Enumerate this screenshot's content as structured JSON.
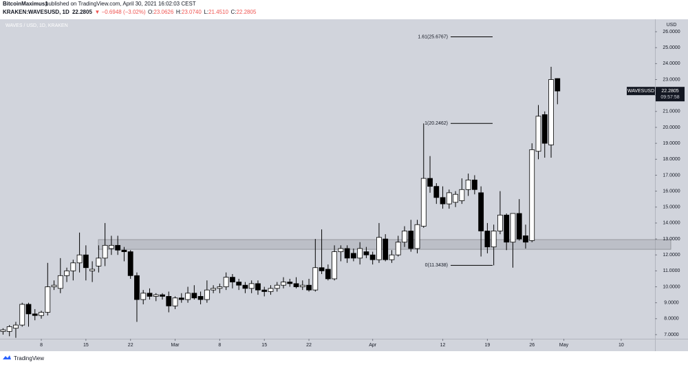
{
  "chart_data": {
    "type": "candlestick",
    "author": "BitcoinMaximus1",
    "published": "published on TradingView.com, April 30, 2021 16:02:03 CEST",
    "symbol": "KRAKEN:WAVESUSD, 1D",
    "header_price": "22.2805",
    "header_change": "▼ −0.6948 (−3.02%)",
    "header_ohlc": [
      "O:",
      "23.0626",
      "H:",
      "23.0740",
      "L:",
      "21.4510",
      "C:",
      "22.2805"
    ],
    "title": "WAVES / USD, 1D, KRAKEN",
    "axis_unit": "USD",
    "ticker": "WAVESUSD",
    "last_price": 22.2805,
    "countdown": "09:57:58",
    "brand": "TradingView",
    "grid": false,
    "up_color": "#ffffff",
    "down_color": "#000000",
    "x": [
      1,
      2,
      3,
      4,
      5,
      6,
      7,
      8,
      9,
      10,
      11,
      12,
      13,
      14,
      15,
      16,
      17,
      18,
      19,
      20,
      21,
      22,
      23,
      24,
      25,
      26,
      27,
      28,
      29,
      30,
      31,
      32,
      33,
      34,
      35,
      36,
      37,
      38,
      39,
      40,
      41,
      42,
      43,
      44,
      45,
      46,
      47,
      48,
      49,
      50,
      51,
      52,
      53,
      54,
      55,
      56,
      57,
      58,
      59,
      60,
      61,
      62,
      63,
      64,
      65,
      66,
      67,
      68,
      69,
      70,
      71,
      72,
      73,
      74,
      75,
      76,
      77,
      78,
      79,
      80,
      81,
      82,
      83,
      84,
      85,
      86,
      87,
      88
    ],
    "open": [
      7.2,
      7.2,
      7.4,
      7.6,
      8.9,
      8.3,
      8.2,
      8.4,
      10.0,
      9.9,
      10.7,
      11.0,
      11.5,
      12.0,
      11.0,
      11.3,
      11.8,
      12.4,
      12.6,
      12.3,
      12.2,
      10.7,
      9.2,
      9.6,
      9.4,
      9.5,
      9.4,
      8.8,
      9.3,
      9.2,
      9.6,
      9.4,
      9.2,
      9.8,
      9.9,
      10.0,
      10.6,
      10.3,
      10.1,
      9.9,
      10.2,
      9.8,
      9.7,
      9.9,
      10.1,
      10.3,
      10.2,
      10.0,
      10.1,
      9.8,
      11.2,
      11.1,
      10.5,
      12.2,
      12.4,
      12.1,
      11.8,
      12.2,
      12.0,
      11.7,
      13.0,
      11.7,
      12.0,
      12.8,
      13.5,
      12.4,
      13.8,
      16.8,
      16.3,
      15.6,
      15.2,
      15.3,
      15.4,
      16.1,
      16.7,
      15.9,
      13.5,
      12.5,
      13.5,
      14.5,
      12.8,
      14.6,
      13.2,
      12.9,
      18.5,
      20.8,
      18.9,
      23.0626
    ],
    "high": [
      7.4,
      7.6,
      7.8,
      9.0,
      9.0,
      8.6,
      8.5,
      11.5,
      10.4,
      11.8,
      11.2,
      11.7,
      13.4,
      12.6,
      11.6,
      12.6,
      14.0,
      13.2,
      13.2,
      12.5,
      12.3,
      10.9,
      9.8,
      9.9,
      9.6,
      9.6,
      9.7,
      9.4,
      9.6,
      10.0,
      10.1,
      9.7,
      10.4,
      10.1,
      10.2,
      10.9,
      10.8,
      10.5,
      10.3,
      10.4,
      10.4,
      10.0,
      10.1,
      10.3,
      10.6,
      10.5,
      10.6,
      10.4,
      10.5,
      13.0,
      13.6,
      11.4,
      12.6,
      12.6,
      12.6,
      12.4,
      12.8,
      12.5,
      12.2,
      14.0,
      13.3,
      12.3,
      13.2,
      13.8,
      14.2,
      14.2,
      20.2462,
      18.2,
      16.5,
      16.3,
      16.1,
      16.0,
      16.8,
      17.1,
      17.0,
      16.3,
      14.0,
      13.9,
      16.0,
      14.6,
      14.6,
      15.5,
      13.9,
      19.0,
      21.4,
      21.0,
      23.8,
      23.074
    ],
    "low": [
      7.0,
      6.9,
      6.8,
      7.5,
      7.5,
      7.9,
      8.0,
      8.2,
      9.8,
      9.6,
      10.3,
      10.4,
      10.9,
      10.4,
      10.3,
      10.9,
      11.3,
      12.0,
      12.0,
      11.6,
      10.5,
      7.8,
      8.9,
      9.2,
      9.1,
      9.2,
      8.4,
      8.6,
      9.0,
      9.0,
      9.2,
      8.9,
      9.0,
      9.6,
      9.6,
      9.8,
      9.9,
      9.8,
      9.6,
      9.6,
      9.5,
      9.4,
      9.5,
      9.7,
      9.9,
      10.0,
      9.9,
      9.8,
      9.7,
      9.7,
      10.8,
      10.4,
      10.4,
      11.6,
      11.5,
      11.6,
      11.4,
      11.8,
      11.4,
      11.5,
      11.6,
      11.5,
      11.9,
      12.5,
      12.2,
      12.1,
      13.7,
      15.9,
      15.2,
      14.9,
      14.9,
      15.0,
      15.2,
      15.7,
      15.8,
      11.9,
      12.1,
      11.3438,
      13.3,
      12.3,
      11.2,
      12.9,
      12.4,
      12.8,
      18.0,
      18.1,
      18.1,
      21.451
    ],
    "close": [
      7.3,
      7.5,
      7.6,
      8.9,
      8.3,
      8.2,
      8.4,
      10.0,
      10.1,
      10.7,
      11.0,
      11.5,
      12.0,
      11.2,
      11.1,
      11.8,
      12.6,
      12.6,
      12.3,
      12.2,
      10.7,
      9.2,
      9.6,
      9.4,
      9.5,
      9.4,
      8.8,
      9.3,
      9.2,
      9.6,
      9.3,
      9.2,
      9.8,
      9.9,
      10.0,
      10.6,
      10.3,
      10.1,
      9.9,
      10.2,
      9.8,
      9.7,
      9.9,
      10.1,
      10.3,
      10.2,
      10.0,
      10.1,
      9.8,
      11.2,
      11.0,
      10.5,
      12.2,
      12.4,
      11.8,
      11.8,
      12.4,
      12.0,
      11.7,
      13.1,
      11.7,
      12.0,
      12.8,
      13.5,
      12.4,
      13.9,
      16.8,
      16.3,
      15.6,
      15.2,
      15.9,
      15.8,
      16.1,
      16.7,
      16.1,
      13.5,
      12.5,
      13.5,
      14.5,
      12.8,
      14.6,
      13.0,
      12.8,
      18.6,
      20.7,
      19.0,
      23.0,
      22.2805
    ],
    "fib_levels": [
      {
        "value": 25.6767,
        "label": "1.61(25.6767)"
      },
      {
        "value": 20.2462,
        "label": "1(20.2462)"
      },
      {
        "value": 11.3438,
        "label": "0(11.3438)"
      }
    ],
    "zone": [
      12.35,
      12.96
    ],
    "xlim": [
      0.52,
      103.3
    ],
    "ylim": [
      6.74,
      26.78
    ],
    "xticks": [
      {
        "value": 7,
        "label": "8"
      },
      {
        "value": 14,
        "label": "15"
      },
      {
        "value": 21,
        "label": "22"
      },
      {
        "value": 28,
        "label": "Mar"
      },
      {
        "value": 35,
        "label": "8"
      },
      {
        "value": 42,
        "label": "15"
      },
      {
        "value": 49,
        "label": "22"
      },
      {
        "value": 59,
        "label": "Apr"
      },
      {
        "value": 70,
        "label": "12"
      },
      {
        "value": 77,
        "label": "19"
      },
      {
        "value": 84,
        "label": "26"
      },
      {
        "value": 89,
        "label": "May"
      },
      {
        "value": 98,
        "label": "10"
      }
    ],
    "yticks": [
      {
        "value": 7,
        "label": "7.0000"
      },
      {
        "value": 8,
        "label": "8.0000"
      },
      {
        "value": 9,
        "label": "9.0000"
      },
      {
        "value": 10,
        "label": "10.0000"
      },
      {
        "value": 11,
        "label": "11.0000"
      },
      {
        "value": 12,
        "label": "12.0000"
      },
      {
        "value": 13,
        "label": "13.0000"
      },
      {
        "value": 14,
        "label": "14.0000"
      },
      {
        "value": 15,
        "label": "15.0000"
      },
      {
        "value": 16,
        "label": "16.0000"
      },
      {
        "value": 17,
        "label": "17.0000"
      },
      {
        "value": 18,
        "label": "18.0000"
      },
      {
        "value": 19,
        "label": "19.0000"
      },
      {
        "value": 20,
        "label": "20.0000"
      },
      {
        "value": 21,
        "label": "21.0000"
      },
      {
        "value": 22,
        "label": "22.0000"
      },
      {
        "value": 23,
        "label": "23.0000"
      },
      {
        "value": 24,
        "label": "24.0000"
      },
      {
        "value": 25,
        "label": "25.0000"
      },
      {
        "value": 26,
        "label": "26.0000"
      }
    ]
  }
}
